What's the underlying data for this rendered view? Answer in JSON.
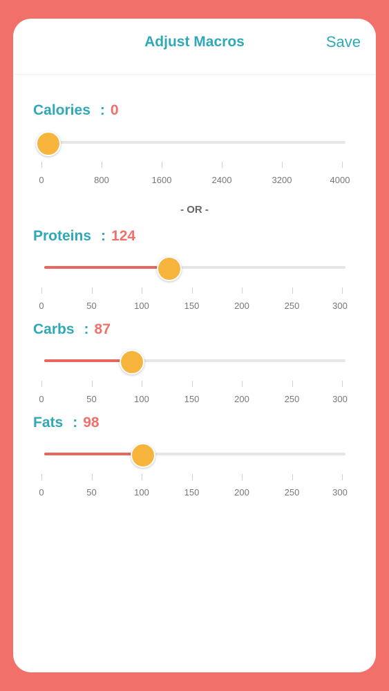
{
  "header": {
    "title": "Adjust Macros",
    "save_label": "Save"
  },
  "divider_text": "- OR -",
  "calories": {
    "label": "Calories",
    "colon": ":",
    "value": "0",
    "slider": {
      "min": 0,
      "max": 4000,
      "value": 0
    },
    "ticks": [
      "0",
      "800",
      "1600",
      "2400",
      "3200",
      "4000"
    ]
  },
  "proteins": {
    "label": "Proteins",
    "colon": ":",
    "value": "124",
    "slider": {
      "min": 0,
      "max": 300,
      "value": 124
    },
    "ticks": [
      "0",
      "50",
      "100",
      "150",
      "200",
      "250",
      "300"
    ]
  },
  "carbs": {
    "label": "Carbs",
    "colon": ":",
    "value": "87",
    "slider": {
      "min": 0,
      "max": 300,
      "value": 87
    },
    "ticks": [
      "0",
      "50",
      "100",
      "150",
      "200",
      "250",
      "300"
    ]
  },
  "fats": {
    "label": "Fats",
    "colon": ":",
    "value": "98",
    "slider": {
      "min": 0,
      "max": 300,
      "value": 98
    },
    "ticks": [
      "0",
      "50",
      "100",
      "150",
      "200",
      "250",
      "300"
    ]
  },
  "colors": {
    "accent": "#2FA9B8",
    "value": "#F2706A",
    "thumb": "#F6B43C",
    "fill": "#E8665E",
    "background": "#F2706A"
  }
}
